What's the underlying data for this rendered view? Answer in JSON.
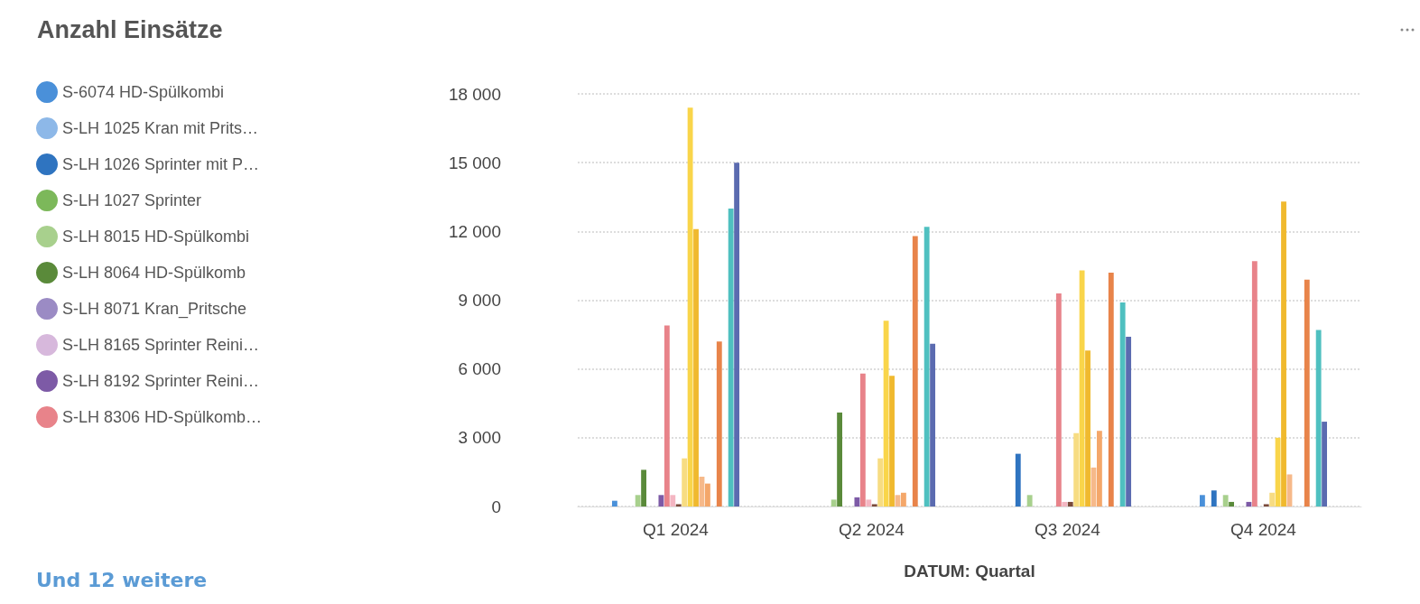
{
  "chart_data": {
    "type": "bar",
    "title": "Anzahl Einsätze",
    "xlabel": "DATUM: Quartal",
    "categories": [
      "Q1 2024",
      "Q2 2024",
      "Q3 2024",
      "Q4 2024"
    ],
    "ylim": [
      0,
      18000
    ],
    "yticks": [
      {
        "value": 0,
        "label": "0"
      },
      {
        "value": 3000,
        "label": "3 000"
      },
      {
        "value": 6000,
        "label": "6 000"
      },
      {
        "value": 9000,
        "label": "9 000"
      },
      {
        "value": 12000,
        "label": "12 000"
      },
      {
        "value": 15000,
        "label": "15 000"
      },
      {
        "value": 18000,
        "label": "18 000"
      }
    ],
    "grid": "y",
    "legend": "left",
    "marker": "circle",
    "annotations": [
      "Und 12 weitere"
    ],
    "series": [
      {
        "name": "S-6074 HD-Spülkombi",
        "color": "#4a90d9",
        "values": [
          250,
          0,
          0,
          500
        ]
      },
      {
        "name": "S-LH 1025 Kran mit Prits…",
        "color": "#8db8e8",
        "values": [
          0,
          0,
          0,
          0
        ]
      },
      {
        "name": "S-LH 1026 Sprinter mit P…",
        "color": "#2f74c0",
        "values": [
          0,
          0,
          2300,
          700
        ]
      },
      {
        "name": "S-LH 1027 Sprinter",
        "color": "#7cb85a",
        "values": [
          0,
          0,
          0,
          0
        ]
      },
      {
        "name": "S-LH 8015 HD-Spülkombi",
        "color": "#a8d08d",
        "values": [
          500,
          300,
          500,
          500
        ]
      },
      {
        "name": "S-LH 8064 HD-Spülkomb",
        "color": "#5a8a3a",
        "values": [
          1600,
          4100,
          0,
          200
        ]
      },
      {
        "name": "S-LH 8071 Kran_Pritsche",
        "color": "#9b8bc4",
        "values": [
          0,
          0,
          0,
          0
        ]
      },
      {
        "name": "S-LH 8165 Sprinter Reini…",
        "color": "#d7b8dc",
        "values": [
          0,
          0,
          0,
          0
        ]
      },
      {
        "name": "S-LH 8192 Sprinter Reini…",
        "color": "#7d5aa6",
        "values": [
          500,
          400,
          0,
          200
        ]
      },
      {
        "name": "S-LH 8306 HD-Spülkomb…",
        "color": "#e8838a",
        "values": [
          7900,
          5800,
          9300,
          10700
        ]
      },
      {
        "color": "#f4b6c2",
        "values": [
          500,
          300,
          200,
          0
        ]
      },
      {
        "color": "#7a4a3a",
        "values": [
          100,
          100,
          200,
          100
        ]
      },
      {
        "color": "#f7dc82",
        "values": [
          2100,
          2100,
          3200,
          600
        ]
      },
      {
        "color": "#f9d54a",
        "values": [
          17400,
          8100,
          10300,
          3000
        ]
      },
      {
        "color": "#f0b92e",
        "values": [
          12100,
          5700,
          6800,
          13300
        ]
      },
      {
        "color": "#f6b98a",
        "values": [
          1300,
          500,
          1700,
          1400
        ]
      },
      {
        "color": "#f4a76a",
        "values": [
          1000,
          600,
          3300,
          0
        ]
      },
      {
        "color": "#e8a050",
        "values": [
          0,
          0,
          0,
          0
        ]
      },
      {
        "color": "#e8844a",
        "values": [
          7200,
          11800,
          10200,
          9900
        ]
      },
      {
        "color": "#6fb4a8",
        "values": [
          0,
          0,
          0,
          0
        ]
      },
      {
        "color": "#4fc0c0",
        "values": [
          13000,
          12200,
          8900,
          7700
        ]
      },
      {
        "color": "#5b6bb0",
        "values": [
          15000,
          7100,
          7400,
          3700
        ]
      }
    ]
  }
}
